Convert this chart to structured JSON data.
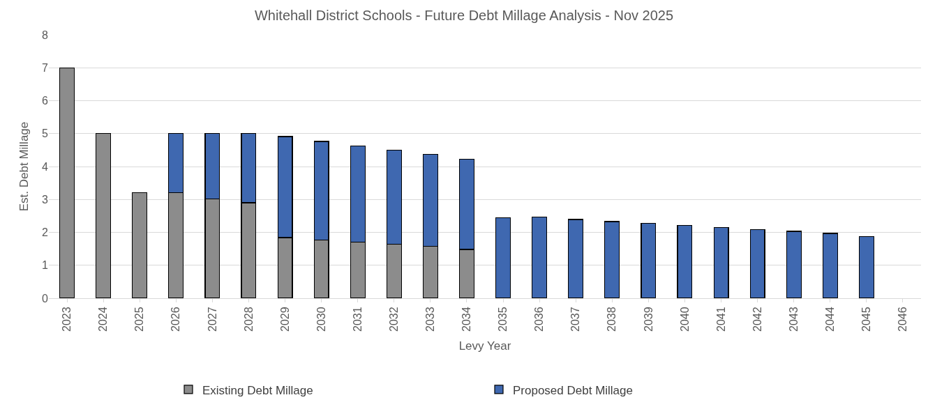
{
  "chart_data": {
    "type": "bar",
    "title": "Whitehall District Schools - Future Debt Millage Analysis - Nov 2025",
    "xlabel": "Levy Year",
    "ylabel": "Est. Debt Millage",
    "categories": [
      "2023",
      "2024",
      "2025",
      "2026",
      "2027",
      "2028",
      "2029",
      "2030",
      "2031",
      "2032",
      "2033",
      "2034",
      "2035",
      "2036",
      "2037",
      "2038",
      "2039",
      "2040",
      "2041",
      "2042",
      "2043",
      "2044",
      "2045",
      "2046"
    ],
    "stacked": true,
    "series": [
      {
        "name": "Existing Debt Millage",
        "color": "#8c8c8c",
        "values": [
          7,
          5,
          3.2,
          3.2,
          3.02,
          2.9,
          1.84,
          1.77,
          1.71,
          1.64,
          1.58,
          1.48,
          null,
          null,
          null,
          null,
          null,
          null,
          null,
          null,
          null,
          null,
          null,
          null
        ]
      },
      {
        "name": "Proposed Debt Millage",
        "color": "#3f68b0",
        "values": [
          null,
          null,
          null,
          1.8,
          1.98,
          2.1,
          3.07,
          2.99,
          2.91,
          2.85,
          2.79,
          2.75,
          2.45,
          2.46,
          2.39,
          2.33,
          2.27,
          2.21,
          2.15,
          2.08,
          2.03,
          1.97,
          1.88,
          null
        ]
      }
    ],
    "ylim": [
      0,
      8
    ],
    "yticks": [
      0,
      1,
      2,
      3,
      4,
      5,
      6,
      7,
      8
    ],
    "grid": "y",
    "legend": "bottom"
  }
}
